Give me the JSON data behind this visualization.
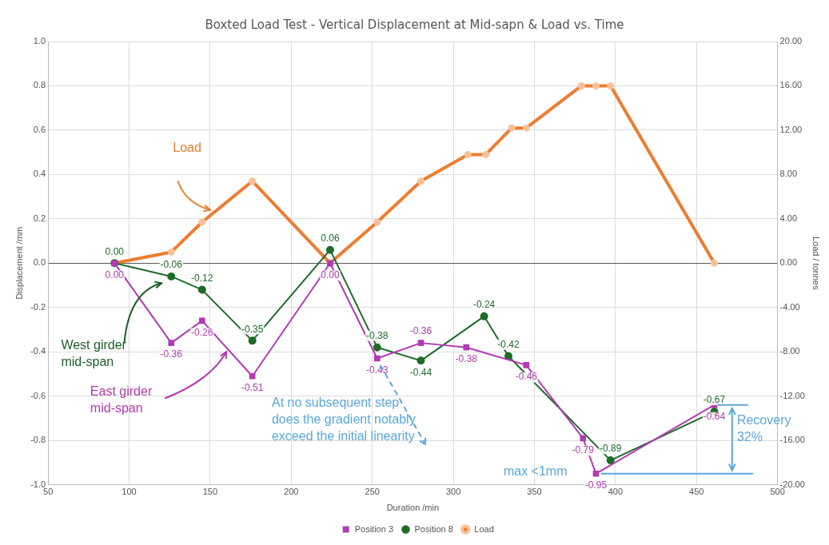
{
  "chart_data": {
    "type": "line",
    "title": "Boxted Load Test - Vertical Displacement at Mid-sapn & Load vs. Time",
    "xlabel": "Duration /min",
    "ylabel": "Displacement /mm",
    "y2label": "Load / tonnes",
    "xlim": [
      50,
      500
    ],
    "xticks": [
      50,
      100,
      150,
      200,
      250,
      300,
      350,
      400,
      450,
      500
    ],
    "ylim": [
      -1,
      1
    ],
    "yticks": [
      {
        "value": -1,
        "label": "-1.0"
      },
      {
        "value": -0.8,
        "label": "-0.8"
      },
      {
        "value": -0.6,
        "label": "-0.6"
      },
      {
        "value": -0.4,
        "label": "-0.4"
      },
      {
        "value": -0.2,
        "label": "-0.2"
      },
      {
        "value": 0,
        "label": "0.0"
      },
      {
        "value": 0.2,
        "label": "0.2"
      },
      {
        "value": 0.4,
        "label": "0.4"
      },
      {
        "value": 0.6,
        "label": "0.6"
      },
      {
        "value": 0.8,
        "label": "0.8"
      },
      {
        "value": 1,
        "label": "1.0"
      }
    ],
    "y2lim": [
      -20,
      20
    ],
    "y2ticks": [
      {
        "value": -20,
        "label": "-20.00"
      },
      {
        "value": -16,
        "label": "-16.00"
      },
      {
        "value": -12,
        "label": "-12.00"
      },
      {
        "value": -8,
        "label": "-8.00"
      },
      {
        "value": -4,
        "label": "-4.00"
      },
      {
        "value": 0,
        "label": "0.00"
      },
      {
        "value": 4,
        "label": "4.00"
      },
      {
        "value": 8,
        "label": "8.00"
      },
      {
        "value": 12,
        "label": "12.00"
      },
      {
        "value": 16,
        "label": "16.00"
      },
      {
        "value": 20,
        "label": "20.00"
      }
    ],
    "grid": true,
    "legend": "bottom",
    "line_style": "solid",
    "series": [
      {
        "name": "Position 3",
        "color": "#b23ab2",
        "marker": "square",
        "x": [
          91,
          126,
          145,
          176,
          224,
          253,
          280,
          308,
          345,
          380,
          388,
          461
        ],
        "values": [
          0,
          -0.36,
          -0.26,
          -0.51,
          0,
          -0.43,
          -0.36,
          -0.38,
          -0.46,
          -0.79,
          -0.95,
          -0.64
        ],
        "value_labels": [
          "0.00",
          "-0.36",
          "-0.26",
          "-0.51",
          "0.00",
          "-0.43",
          "-0.36",
          "-0.38",
          "-0.46",
          "-0.79",
          "-0.95",
          "-0.64"
        ]
      },
      {
        "name": "Position 8",
        "color": "#1e6b2a",
        "marker": "circle",
        "x": [
          91,
          126,
          145,
          176,
          224,
          253,
          280,
          319,
          334,
          397,
          461
        ],
        "values": [
          0,
          -0.06,
          -0.12,
          -0.35,
          0.06,
          -0.38,
          -0.44,
          -0.24,
          -0.42,
          -0.89,
          -0.67
        ],
        "value_labels": [
          "0.00",
          "-0.06",
          "-0.12",
          "-0.35",
          "0.06",
          "-0.38",
          "-0.44",
          "-0.24",
          "-0.42",
          "-0.89",
          "-0.67"
        ]
      },
      {
        "name": "Load",
        "color": "#ed7d31",
        "marker": "circle",
        "axis": "y2",
        "x": [
          91,
          126,
          145,
          176,
          224,
          253,
          280,
          309,
          320,
          336,
          345,
          379,
          388,
          397,
          461
        ],
        "values": [
          0,
          1,
          3.7,
          7.4,
          0,
          3.7,
          7.4,
          9.8,
          9.8,
          12.2,
          12.2,
          16,
          16,
          16,
          0
        ]
      }
    ],
    "annotations": [
      "Load",
      "West girder mid-span",
      {
        "text": "East girder mid-span",
        "x": 160,
        "y": -0.4
      },
      "At no subsequent step does the gradient notably exceed the initial linearity",
      "max <1mm",
      {
        "text": "Recovery 32%",
        "x": 461,
        "y": -0.64
      }
    ]
  }
}
